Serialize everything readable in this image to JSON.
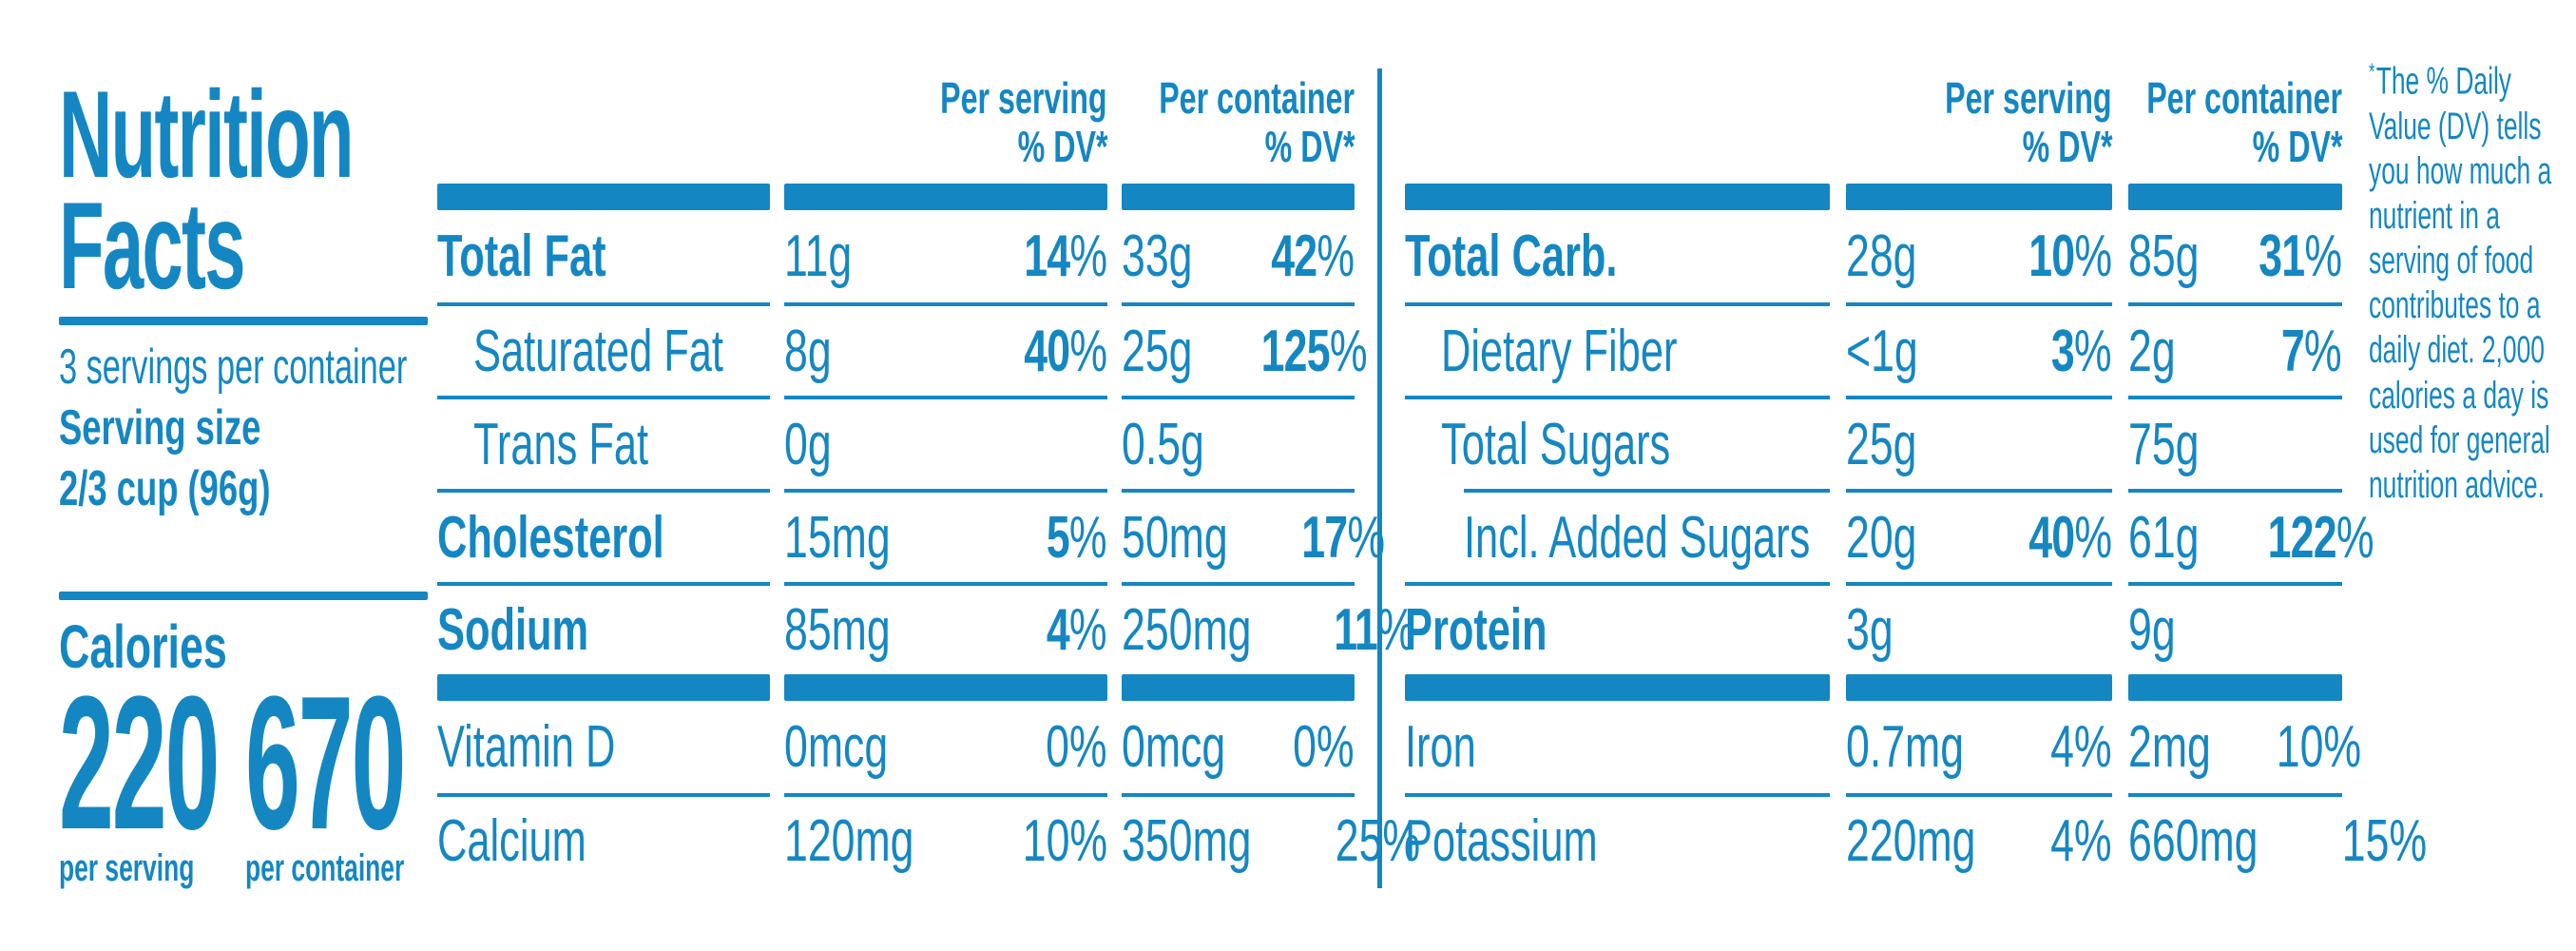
{
  "colors": {
    "brand_blue": "#1487c3"
  },
  "panel": {
    "title_line1": "Nutrition",
    "title_line2": "Facts",
    "servings_per_container": "3 servings per container",
    "serving_size_label": "Serving size",
    "serving_size_value": "2/3 cup (96g)",
    "calories": {
      "label": "Calories",
      "per_serving_value": "220",
      "per_serving_caption": "per serving",
      "per_container_value": "670",
      "per_container_caption": "per container"
    }
  },
  "column_headers": {
    "per_serving": "Per serving",
    "per_container": "Per container",
    "dv": "% DV*"
  },
  "percent_sign": "%",
  "left_table": {
    "rows": [
      {
        "label": "Total Fat",
        "bold": true,
        "indent": 0,
        "serving_qty": "11g",
        "serving_dv": "14",
        "container_qty": "33g",
        "container_dv": "42",
        "dv_bold": true,
        "bar_after": false
      },
      {
        "label": "Saturated Fat",
        "bold": false,
        "indent": 1,
        "serving_qty": "8g",
        "serving_dv": "40",
        "container_qty": "25g",
        "container_dv": "125",
        "dv_bold": true,
        "bar_after": false
      },
      {
        "label": "Trans Fat",
        "bold": false,
        "indent": 1,
        "serving_qty": "0g",
        "serving_dv": null,
        "container_qty": "0.5g",
        "container_dv": null,
        "dv_bold": false,
        "bar_after": false
      },
      {
        "label": "Cholesterol",
        "bold": true,
        "indent": 0,
        "serving_qty": "15mg",
        "serving_dv": "5",
        "container_qty": "50mg",
        "container_dv": "17",
        "dv_bold": true,
        "bar_after": false
      },
      {
        "label": "Sodium",
        "bold": true,
        "indent": 0,
        "serving_qty": "85mg",
        "serving_dv": "4",
        "container_qty": "250mg",
        "container_dv": "11",
        "dv_bold": true,
        "bar_after": true
      },
      {
        "label": "Vitamin D",
        "bold": false,
        "indent": 0,
        "serving_qty": "0mcg",
        "serving_dv": "0",
        "container_qty": "0mcg",
        "container_dv": "0",
        "dv_bold": false,
        "bar_after": false
      },
      {
        "label": "Calcium",
        "bold": false,
        "indent": 0,
        "serving_qty": "120mg",
        "serving_dv": "10",
        "container_qty": "350mg",
        "container_dv": "25",
        "dv_bold": false,
        "bar_after": false
      }
    ]
  },
  "right_table": {
    "rows": [
      {
        "label": "Total Carb.",
        "bold": true,
        "indent": 0,
        "serving_qty": "28g",
        "serving_dv": "10",
        "container_qty": "85g",
        "container_dv": "31",
        "dv_bold": true,
        "bar_after": false
      },
      {
        "label": "Dietary Fiber",
        "bold": false,
        "indent": 1,
        "serving_qty": "<1g",
        "serving_dv": "3",
        "container_qty": "2g",
        "container_dv": "7",
        "dv_bold": true,
        "bar_after": false
      },
      {
        "label": "Total Sugars",
        "bold": false,
        "indent": 1,
        "serving_qty": "25g",
        "serving_dv": null,
        "container_qty": "75g",
        "container_dv": null,
        "dv_bold": false,
        "bar_after": false
      },
      {
        "label": "Incl. Added Sugars",
        "bold": false,
        "indent": 2,
        "serving_qty": "20g",
        "serving_dv": "40",
        "container_qty": "61g",
        "container_dv": "122",
        "dv_bold": true,
        "bar_after": false
      },
      {
        "label": "Protein",
        "bold": true,
        "indent": 0,
        "serving_qty": "3g",
        "serving_dv": null,
        "container_qty": "9g",
        "container_dv": null,
        "dv_bold": false,
        "bar_after": true
      },
      {
        "label": "Iron",
        "bold": false,
        "indent": 0,
        "serving_qty": "0.7mg",
        "serving_dv": "4",
        "container_qty": "2mg",
        "container_dv": "10",
        "dv_bold": false,
        "bar_after": false
      },
      {
        "label": "Potassium",
        "bold": false,
        "indent": 0,
        "serving_qty": "220mg",
        "serving_dv": "4",
        "container_qty": "660mg",
        "container_dv": "15",
        "dv_bold": false,
        "bar_after": false
      }
    ]
  },
  "footnote": {
    "marker": "*",
    "lines": [
      "The % Daily",
      "Value (DV) tells",
      "you how much a",
      "nutrient in a",
      "serving of food",
      "contributes to a",
      "daily diet. 2,000",
      "calories a day is",
      "used for general",
      "nutrition advice."
    ]
  }
}
